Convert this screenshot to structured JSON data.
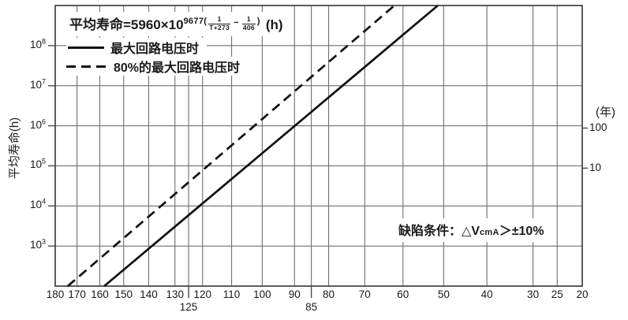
{
  "chart_data": {
    "type": "line",
    "ylabel": "平均寿命(h)",
    "y2label": "(年)",
    "x_axis": {
      "scale": "arrhenius (linear in 1/(T+273))",
      "reversed": true,
      "range_c": [
        180,
        20
      ],
      "ticks": [
        {
          "t": 180,
          "label": "180"
        },
        {
          "t": 170,
          "label": "170"
        },
        {
          "t": 160,
          "label": "160"
        },
        {
          "t": 150,
          "label": "150"
        },
        {
          "t": 140,
          "label": "140"
        },
        {
          "t": 130,
          "label": "130"
        },
        {
          "t": 120,
          "label": "120"
        },
        {
          "t": 110,
          "label": "110"
        },
        {
          "t": 100,
          "label": "100"
        },
        {
          "t": 90,
          "label": "90"
        },
        {
          "t": 80,
          "label": "80"
        },
        {
          "t": 70,
          "label": "70"
        },
        {
          "t": 60,
          "label": "60"
        },
        {
          "t": 50,
          "label": "50"
        },
        {
          "t": 40,
          "label": "40"
        },
        {
          "t": 30,
          "label": "30"
        },
        {
          "t": 25,
          "label": "25"
        },
        {
          "t": 20,
          "label": "20"
        }
      ],
      "gridline_temps_c": [
        170,
        160,
        150,
        140,
        130,
        125,
        120,
        110,
        100,
        90,
        85,
        80,
        70,
        60,
        50,
        40,
        30,
        25
      ],
      "sub_ticks": [
        {
          "t": 125,
          "label": "125"
        },
        {
          "t": 85,
          "label": "85"
        }
      ]
    },
    "y_axis": {
      "scale": "log",
      "range_hours": [
        100,
        1000000000
      ],
      "base": "10",
      "labeled_exponents": [
        8,
        7,
        6,
        5,
        4,
        3
      ]
    },
    "y2_axis": {
      "unit": "年",
      "hours_per_year": 8760,
      "ticks": [
        {
          "label": "100",
          "years": 100
        },
        {
          "label": "10",
          "years": 10
        }
      ]
    },
    "series": [
      {
        "name": "最大回路电压时",
        "style": "solid",
        "points_t_h": [
          [
            158.1,
            100
          ],
          [
            51.4,
            1000000000
          ]
        ]
      },
      {
        "name": "80%的最大回路电压时",
        "style": "dashed",
        "points_t_h": [
          [
            174.2,
            100
          ],
          [
            62.2,
            1000000000
          ]
        ]
      }
    ],
    "colors": {
      "line": "#111111",
      "grid": "#6f6f6f",
      "frame": "#4a4a4a",
      "text": "#1a1a1a",
      "background": "#ffffff"
    }
  },
  "legend": {
    "formula": {
      "base": "平均寿命=5960×10",
      "exp_open": "9677(",
      "frac1": {
        "num": "1",
        "den": "T+273"
      },
      "minus": "−",
      "frac2": {
        "num": "1",
        "den": "406"
      },
      "exp_close": ")",
      "unit": "(h)"
    },
    "items": [
      {
        "label": "最大回路电压时",
        "line": "solid"
      },
      {
        "label": "80%的最大回路电压时",
        "line": "dashed"
      }
    ]
  },
  "annotation": {
    "prefix": "缺陷条件：",
    "symbol": "△V",
    "subscript": "cmA",
    "condition": "＞±10%"
  }
}
